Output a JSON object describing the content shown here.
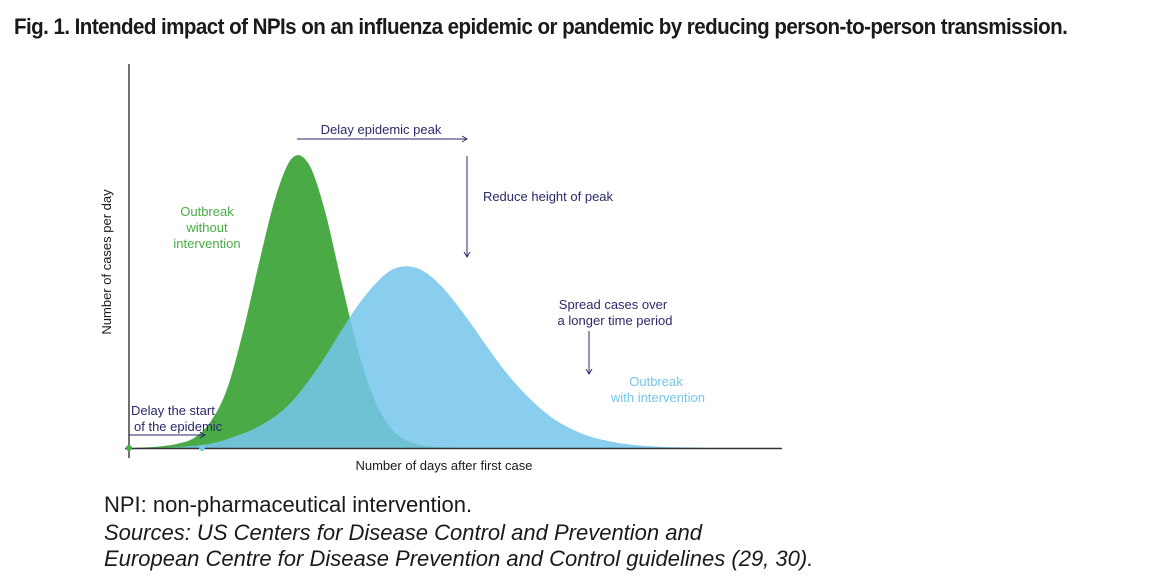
{
  "figure": {
    "title": "Fig. 1. Intended impact of NPIs on an influenza epidemic or pandemic by reducing person-to-person transmission.",
    "note": "NPI: non-pharmaceutical intervention.",
    "sources_line1": "Sources: US Centers for Disease Control and Prevention and",
    "sources_line2": "European Centre for Disease Prevention and Control guidelines (29, 30)."
  },
  "chart_data": {
    "type": "area",
    "title": "",
    "xlabel": "Number of days after first case",
    "ylabel": "Number of cases per day",
    "xlim": [
      0,
      100
    ],
    "ylim": [
      0,
      100
    ],
    "ticks_shown": false,
    "grid": false,
    "x": [
      0,
      2.5,
      5,
      7.5,
      10,
      12.5,
      15,
      17.5,
      20,
      22.5,
      25,
      27.5,
      30,
      32.5,
      35,
      37.5,
      40,
      42.5,
      45,
      47.5,
      50,
      52.5,
      55,
      57.5,
      60,
      62.5,
      65,
      67.5,
      70,
      72.5,
      75,
      77.5,
      80,
      82.5,
      85,
      87.5,
      90,
      92.5,
      95,
      97.5,
      100
    ],
    "series": [
      {
        "name": "Outbreak without intervention",
        "color": "#4aab46",
        "values": [
          0,
          0.2,
          0.6,
          1.5,
          3.5,
          9,
          20,
          40,
          64,
          86,
          99,
          97,
          81,
          57,
          34,
          17,
          7,
          2.6,
          0.9,
          0.3,
          0.1,
          0,
          0,
          0,
          0,
          0,
          0,
          0,
          0,
          0,
          0,
          0,
          0,
          0,
          0,
          0,
          0,
          0,
          0,
          0,
          0
        ]
      },
      {
        "name": "Outbreak with intervention",
        "color": "#74c6ec",
        "values": [
          0,
          0,
          0.1,
          0.3,
          0.8,
          1.5,
          3,
          5,
          7.5,
          11,
          16,
          23,
          31,
          40,
          48.5,
          55.5,
          60.5,
          62,
          60.5,
          56,
          49.5,
          42,
          34,
          26.5,
          20,
          14.5,
          10,
          6.8,
          4.4,
          2.8,
          1.7,
          1,
          0.6,
          0.3,
          0.2,
          0.1,
          0,
          0,
          0,
          0,
          0
        ]
      }
    ],
    "annotations": [
      {
        "text": "Delay epidemic peak",
        "arrow": "right"
      },
      {
        "text": "Reduce height of peak",
        "arrow": "down"
      },
      {
        "text_lines": [
          "Spread cases over",
          "a longer time period"
        ],
        "arrow": "down"
      },
      {
        "text_lines": [
          "Delay the start",
          "of the epidemic"
        ],
        "arrow": "right"
      }
    ],
    "series_labels": [
      {
        "text_lines": [
          "Outbreak",
          "without",
          "intervention"
        ],
        "color": "#4aab46"
      },
      {
        "text_lines": [
          "Outbreak",
          "with intervention"
        ],
        "color": "#74c6ec"
      }
    ],
    "annotation_color": "#2b2a6b",
    "axis_color": "#333333"
  }
}
